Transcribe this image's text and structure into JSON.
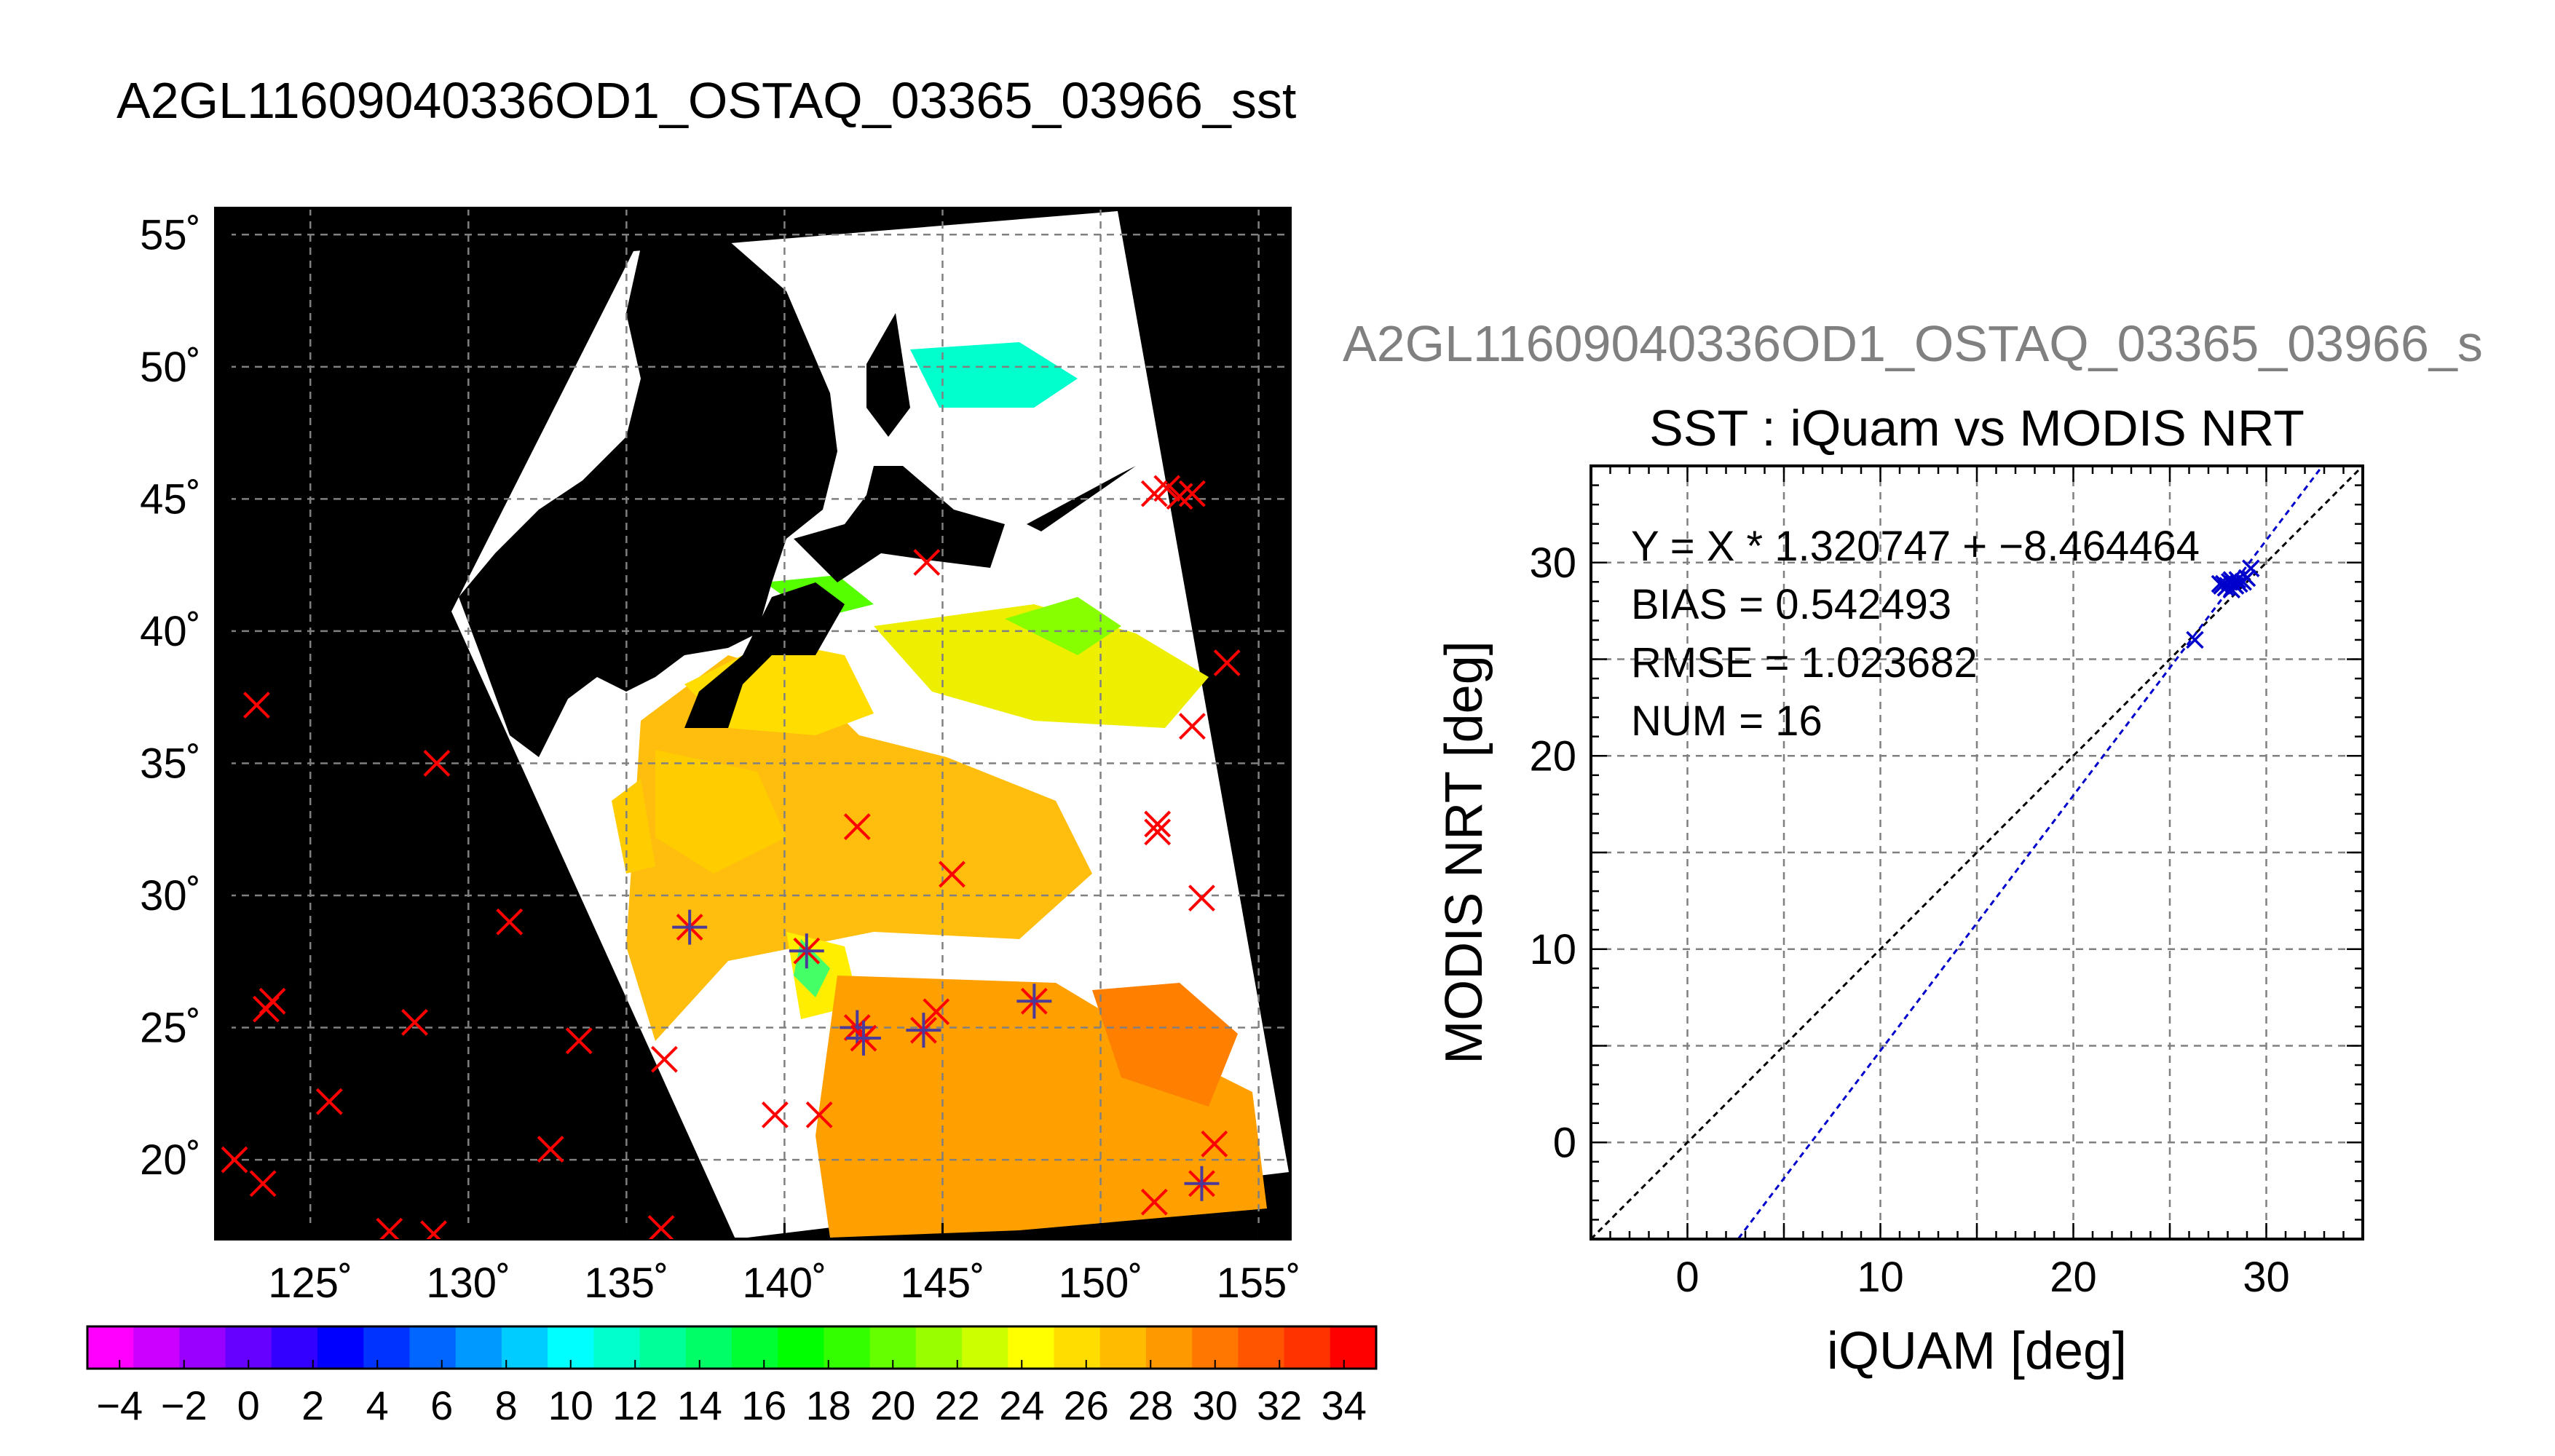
{
  "main_title": "A2GL11609040336OD1_OSTAQ_03365_03966_sst",
  "sub_title": "A2GL11609040336OD1_OSTAQ_03365_03966_s",
  "colors": {
    "map_background": "#000000",
    "land": "#000000",
    "cloud": "#ffffff",
    "marker_unmatched": "#ff0000",
    "marker_matched": "#4b3a9a",
    "fit_line": "#0000cc",
    "one_to_one_line": "#000000",
    "grid": "#808080"
  },
  "chart_data": [
    {
      "type": "map",
      "title": "",
      "lat_ticks": [
        55,
        50,
        45,
        40,
        35,
        30,
        25,
        20
      ],
      "lon_ticks": [
        125,
        130,
        135,
        140,
        145,
        150,
        155
      ],
      "lat_tick_labels": [
        "55˚",
        "50˚",
        "45˚",
        "40˚",
        "35˚",
        "30˚",
        "25˚",
        "20˚"
      ],
      "lon_tick_labels": [
        "125˚",
        "130˚",
        "135˚",
        "140˚",
        "145˚",
        "150˚",
        "155˚"
      ],
      "lon_range": [
        122,
        156
      ],
      "lat_range": [
        17,
        56
      ],
      "grid": true,
      "colorbar": {
        "min": -5,
        "max": 35,
        "tick_values": [
          -4,
          -2,
          0,
          2,
          4,
          6,
          8,
          10,
          12,
          14,
          16,
          18,
          20,
          22,
          24,
          26,
          28,
          30,
          32,
          34
        ],
        "tick_labels": [
          "−4",
          "−2",
          "0",
          "2",
          "4",
          "6",
          "8",
          "10",
          "12",
          "14",
          "16",
          "18",
          "20",
          "22",
          "24",
          "26",
          "28",
          "30",
          "32",
          "34"
        ],
        "colors": [
          "#ff00ff",
          "#cc00ff",
          "#9900ff",
          "#6600ff",
          "#3300ff",
          "#0000ff",
          "#0033ff",
          "#0066ff",
          "#0099ff",
          "#00ccff",
          "#00ffff",
          "#00ffcc",
          "#00ff99",
          "#00ff66",
          "#00ff33",
          "#00ff00",
          "#33ff00",
          "#66ff00",
          "#99ff00",
          "#ccff00",
          "#ffff00",
          "#ffdd00",
          "#ffbb00",
          "#ff9900",
          "#ff7700",
          "#ff5500",
          "#ff3300",
          "#ff0000"
        ]
      },
      "unmatched_buoys": [
        {
          "lon": 123.3,
          "lat": 37.2
        },
        {
          "lon": 129.0,
          "lat": 35.0
        },
        {
          "lon": 131.3,
          "lat": 29.0
        },
        {
          "lon": 123.8,
          "lat": 26.0
        },
        {
          "lon": 123.6,
          "lat": 25.7
        },
        {
          "lon": 128.3,
          "lat": 25.2
        },
        {
          "lon": 133.5,
          "lat": 24.5
        },
        {
          "lon": 125.6,
          "lat": 22.2
        },
        {
          "lon": 132.6,
          "lat": 20.4
        },
        {
          "lon": 122.6,
          "lat": 20.0
        },
        {
          "lon": 123.5,
          "lat": 19.1
        },
        {
          "lon": 127.5,
          "lat": 17.3
        },
        {
          "lon": 128.9,
          "lat": 17.2
        },
        {
          "lon": 136.1,
          "lat": 17.4
        },
        {
          "lon": 136.2,
          "lat": 23.8
        },
        {
          "lon": 139.7,
          "lat": 21.7
        },
        {
          "lon": 141.1,
          "lat": 21.7
        },
        {
          "lon": 142.3,
          "lat": 32.6
        },
        {
          "lon": 144.5,
          "lat": 42.6
        },
        {
          "lon": 145.3,
          "lat": 30.8
        },
        {
          "lon": 144.8,
          "lat": 25.6
        },
        {
          "lon": 151.7,
          "lat": 45.2
        },
        {
          "lon": 152.1,
          "lat": 45.4
        },
        {
          "lon": 152.5,
          "lat": 45.1
        },
        {
          "lon": 152.9,
          "lat": 45.2
        },
        {
          "lon": 154.0,
          "lat": 38.8
        },
        {
          "lon": 152.9,
          "lat": 36.4
        },
        {
          "lon": 151.8,
          "lat": 32.7
        },
        {
          "lon": 151.8,
          "lat": 32.4
        },
        {
          "lon": 153.2,
          "lat": 29.9
        },
        {
          "lon": 153.6,
          "lat": 20.6
        },
        {
          "lon": 151.7,
          "lat": 18.4
        }
      ],
      "matched_buoys": [
        {
          "lon": 137.0,
          "lat": 28.8
        },
        {
          "lon": 140.7,
          "lat": 27.9
        },
        {
          "lon": 142.3,
          "lat": 25.0
        },
        {
          "lon": 142.5,
          "lat": 24.6
        },
        {
          "lon": 144.4,
          "lat": 24.9
        },
        {
          "lon": 147.9,
          "lat": 26.0
        },
        {
          "lon": 153.2,
          "lat": 19.1
        }
      ]
    },
    {
      "type": "scatter",
      "title": "SST : iQuam vs MODIS NRT",
      "xlabel": "iQUAM [deg]",
      "ylabel": "MODIS NRT [deg]",
      "xlim": [
        -5,
        35
      ],
      "ylim": [
        -5,
        35
      ],
      "x_ticks": [
        0,
        10,
        20,
        30
      ],
      "y_ticks": [
        0,
        10,
        20,
        30
      ],
      "grid": true,
      "annotations": [
        "Y = X * 1.320747 + −8.464464",
        "BIAS = 0.542493",
        "RMSE = 1.023682",
        "NUM = 16"
      ],
      "fit": {
        "slope": 1.320747,
        "intercept": -8.464464
      },
      "points": [
        {
          "x": 26.3,
          "y": 26.0
        },
        {
          "x": 27.7,
          "y": 28.8
        },
        {
          "x": 27.8,
          "y": 28.9
        },
        {
          "x": 27.9,
          "y": 28.7
        },
        {
          "x": 28.0,
          "y": 28.8
        },
        {
          "x": 28.1,
          "y": 29.0
        },
        {
          "x": 28.2,
          "y": 28.6
        },
        {
          "x": 28.3,
          "y": 28.9
        },
        {
          "x": 28.4,
          "y": 28.8
        },
        {
          "x": 28.5,
          "y": 29.1
        },
        {
          "x": 28.6,
          "y": 28.9
        },
        {
          "x": 28.8,
          "y": 29.0
        },
        {
          "x": 29.0,
          "y": 29.2
        },
        {
          "x": 27.6,
          "y": 28.9
        },
        {
          "x": 28.2,
          "y": 29.1
        },
        {
          "x": 29.2,
          "y": 29.7
        }
      ]
    }
  ]
}
